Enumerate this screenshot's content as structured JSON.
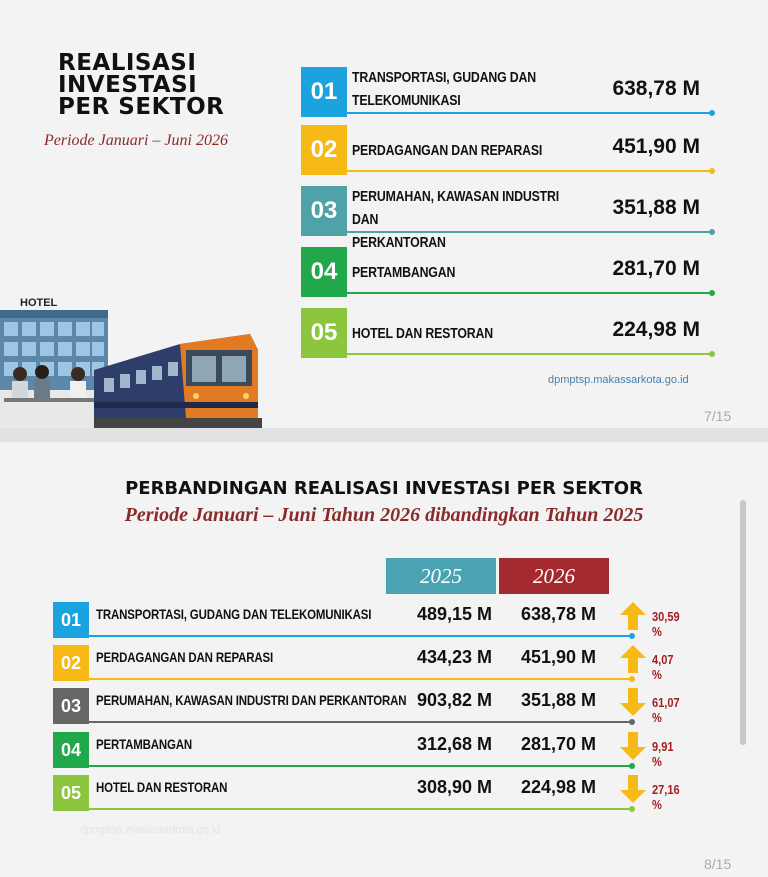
{
  "slide1": {
    "title_lines": [
      "REALISASI",
      "INVESTASI",
      "PER SEKTOR"
    ],
    "period": "Periode Januari – Juni 2026",
    "hotel_sign": "HOTEL",
    "rows": [
      {
        "num": "01",
        "label_lines": [
          "TRANSPORTASI, GUDANG DAN",
          "TELEKOMUNIKASI"
        ],
        "value": "638,78 M",
        "color": "#1ba3e0"
      },
      {
        "num": "02",
        "label_lines": [
          "PERDAGANGAN DAN REPARASI"
        ],
        "value": "451,90 M",
        "color": "#f6b915"
      },
      {
        "num": "03",
        "label_lines": [
          "PERUMAHAN, KAWASAN INDUSTRI DAN",
          "PERKANTORAN"
        ],
        "value": "351,88 M",
        "color": "#4fa3a8"
      },
      {
        "num": "04",
        "label_lines": [
          "PERTAMBANGAN"
        ],
        "value": "281,70 M",
        "color": "#21a84a"
      },
      {
        "num": "05",
        "label_lines": [
          "HOTEL DAN RESTORAN"
        ],
        "value": "224,98 M",
        "color": "#8cc63f"
      }
    ],
    "website": "dpmptsp.makassarkota.go.id",
    "page": "7/15"
  },
  "slide2": {
    "title": "PERBANDINGAN REALISASI INVESTASI PER SEKTOR",
    "period": "Periode Januari – Juni Tahun 2026 dibandingkan Tahun 2025",
    "year_2025": "2025",
    "year_2026": "2026",
    "rows": [
      {
        "num": "01",
        "label": "TRANSPORTASI, GUDANG DAN TELEKOMUNIKASI",
        "v2025": "489,15 M",
        "v2026": "638,78 M",
        "direction": "up",
        "pct": "30,59 %",
        "color": "#1ba3e0"
      },
      {
        "num": "02",
        "label": "PERDAGANGAN DAN REPARASI",
        "v2025": "434,23 M",
        "v2026": "451,90 M",
        "direction": "up",
        "pct": "4,07 %",
        "color": "#f6b915"
      },
      {
        "num": "03",
        "label": "PERUMAHAN, KAWASAN INDUSTRI DAN PERKANTORAN",
        "v2025": "903,82 M",
        "v2026": "351,88 M",
        "direction": "down",
        "pct": "61,07 %",
        "color": "#666666"
      },
      {
        "num": "04",
        "label": "PERTAMBANGAN",
        "v2025": "312,68 M",
        "v2026": "281,70 M",
        "direction": "down",
        "pct": "9,91 %",
        "color": "#21a84a"
      },
      {
        "num": "05",
        "label": "HOTEL DAN RESTORAN",
        "v2025": "308,90 M",
        "v2026": "224,98 M",
        "direction": "down",
        "pct": "27,16 %",
        "color": "#8cc63f"
      }
    ],
    "website": "dpmptsp.makassarkota.go.id",
    "page": "8/15"
  },
  "colors": {
    "year_2025_bg": "#4aa3b3",
    "year_2026_bg": "#a52a2f",
    "arrow": "#f6b915",
    "period_text": "#8a2b2b",
    "pct_text": "#a31f24"
  }
}
